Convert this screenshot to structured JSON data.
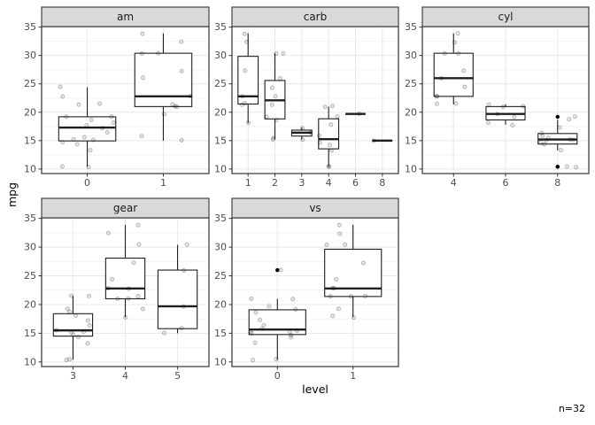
{
  "chart_data": {
    "type": "boxplot",
    "title": "",
    "xlabel": "level",
    "ylabel": "mpg",
    "caption": "n=32",
    "y_ticks": [
      10,
      15,
      20,
      25,
      30,
      35
    ],
    "y_minor_ticks": [
      12.5,
      17.5,
      22.5,
      27.5,
      32.5
    ],
    "y_domain": [
      9.2,
      35.1
    ],
    "legend": "none",
    "grid": "on",
    "colors": {
      "strip_fill": "#d9d9d9",
      "strip_border": "#333333",
      "panel_fill": "#ffffff",
      "panel_border": "#333333",
      "grid_major": "#e8e8e8",
      "grid_minor": "#f3f3f3",
      "box_stroke": "#1f1f1f",
      "box_fill": "#ffffff",
      "point_fill": "rgba(0,0,0,0.10)",
      "point_stroke": "rgba(0,0,0,0.26)",
      "outlier_fill": "#000000",
      "tick_mark": "#333333",
      "tick_text": "#4d4d4d",
      "strip_text": "#1a1a1a"
    },
    "facets": [
      {
        "title": "am",
        "row": 0,
        "col": 0,
        "levels": [
          "0",
          "1"
        ],
        "boxes": [
          {
            "level": "0",
            "whisker_low": 10.4,
            "q1": 14.95,
            "median": 17.3,
            "q3": 19.2,
            "whisker_high": 24.4,
            "outliers": []
          },
          {
            "level": "1",
            "whisker_low": 15.0,
            "q1": 21.0,
            "median": 22.8,
            "q3": 30.4,
            "whisker_high": 33.9,
            "outliers": []
          }
        ],
        "points": {
          "0": [
            21.4,
            18.7,
            18.1,
            14.3,
            24.4,
            22.8,
            19.2,
            17.8,
            16.4,
            17.3,
            15.2,
            10.4,
            10.4,
            14.7,
            21.5,
            15.5,
            15.2,
            13.3,
            19.2
          ],
          "1": [
            21.0,
            21.0,
            22.8,
            32.4,
            30.4,
            33.9,
            27.3,
            26.0,
            30.4,
            15.8,
            19.7,
            15.0,
            21.4
          ]
        }
      },
      {
        "title": "carb",
        "row": 0,
        "col": 1,
        "levels": [
          "1",
          "2",
          "3",
          "4",
          "6",
          "8"
        ],
        "boxes": [
          {
            "level": "1",
            "whisker_low": 18.1,
            "q1": 21.45,
            "median": 22.8,
            "q3": 29.85,
            "whisker_high": 33.9,
            "outliers": []
          },
          {
            "level": "2",
            "whisker_low": 15.2,
            "q1": 18.83,
            "median": 22.1,
            "q3": 25.6,
            "whisker_high": 30.4,
            "outliers": []
          },
          {
            "level": "3",
            "whisker_low": 15.2,
            "q1": 15.8,
            "median": 16.4,
            "q3": 16.85,
            "whisker_high": 17.3,
            "outliers": []
          },
          {
            "level": "4",
            "whisker_low": 10.4,
            "q1": 13.55,
            "median": 15.25,
            "q3": 18.85,
            "whisker_high": 21.0,
            "outliers": []
          },
          {
            "level": "6",
            "whisker_low": 19.7,
            "q1": 19.7,
            "median": 19.7,
            "q3": 19.7,
            "whisker_high": 19.7,
            "outliers": []
          },
          {
            "level": "8",
            "whisker_low": 15.0,
            "q1": 15.0,
            "median": 15.0,
            "q3": 15.0,
            "whisker_high": 15.0,
            "outliers": []
          }
        ],
        "points": {
          "1": [
            22.8,
            21.4,
            18.1,
            32.4,
            33.9,
            21.5,
            27.3
          ],
          "2": [
            18.7,
            24.4,
            22.8,
            30.4,
            15.5,
            15.2,
            19.2,
            26.0,
            30.4,
            21.4
          ],
          "3": [
            16.4,
            17.3,
            15.2
          ],
          "4": [
            21.0,
            21.0,
            14.3,
            19.2,
            17.8,
            10.4,
            10.4,
            14.7,
            13.3,
            15.8
          ],
          "6": [
            19.7
          ],
          "8": [
            15.0
          ]
        }
      },
      {
        "title": "cyl",
        "row": 0,
        "col": 2,
        "levels": [
          "4",
          "6",
          "8"
        ],
        "boxes": [
          {
            "level": "4",
            "whisker_low": 21.4,
            "q1": 22.8,
            "median": 26.0,
            "q3": 30.4,
            "whisker_high": 33.9,
            "outliers": []
          },
          {
            "level": "6",
            "whisker_low": 17.8,
            "q1": 18.65,
            "median": 19.7,
            "q3": 21.0,
            "whisker_high": 21.4,
            "outliers": []
          },
          {
            "level": "8",
            "whisker_low": 13.3,
            "q1": 14.4,
            "median": 15.2,
            "q3": 16.25,
            "whisker_high": 18.7,
            "outliers": [
              10.4,
              10.4,
              19.2
            ]
          }
        ],
        "points": {
          "4": [
            22.8,
            24.4,
            22.8,
            32.4,
            30.4,
            33.9,
            21.5,
            27.3,
            26.0,
            30.4,
            21.4
          ],
          "6": [
            21.0,
            21.0,
            21.4,
            18.1,
            19.2,
            17.8,
            19.7
          ],
          "8": [
            18.7,
            14.3,
            16.4,
            17.3,
            15.2,
            10.4,
            10.4,
            14.7,
            15.5,
            15.2,
            13.3,
            19.2,
            15.8,
            15.0
          ]
        }
      },
      {
        "title": "gear",
        "row": 1,
        "col": 0,
        "levels": [
          "3",
          "4",
          "5"
        ],
        "boxes": [
          {
            "level": "3",
            "whisker_low": 10.4,
            "q1": 14.5,
            "median": 15.5,
            "q3": 18.4,
            "whisker_high": 21.5,
            "outliers": []
          },
          {
            "level": "4",
            "whisker_low": 17.8,
            "q1": 21.0,
            "median": 22.8,
            "q3": 28.08,
            "whisker_high": 33.9,
            "outliers": []
          },
          {
            "level": "5",
            "whisker_low": 15.0,
            "q1": 15.8,
            "median": 19.7,
            "q3": 26.0,
            "whisker_high": 30.4,
            "outliers": []
          }
        ],
        "points": {
          "3": [
            21.4,
            18.7,
            18.1,
            14.3,
            16.4,
            17.3,
            15.2,
            10.4,
            10.4,
            14.7,
            21.5,
            15.5,
            15.2,
            13.3,
            19.2
          ],
          "4": [
            21.0,
            21.0,
            22.8,
            24.4,
            22.8,
            19.2,
            17.8,
            32.4,
            30.4,
            33.9,
            27.3,
            21.4
          ],
          "5": [
            26.0,
            30.4,
            15.8,
            19.7,
            15.0
          ]
        }
      },
      {
        "title": "vs",
        "row": 1,
        "col": 1,
        "levels": [
          "0",
          "1"
        ],
        "boxes": [
          {
            "level": "0",
            "whisker_low": 10.4,
            "q1": 14.78,
            "median": 15.65,
            "q3": 19.08,
            "whisker_high": 21.0,
            "outliers": [
              26.0
            ]
          },
          {
            "level": "1",
            "whisker_low": 17.8,
            "q1": 21.4,
            "median": 22.8,
            "q3": 29.63,
            "whisker_high": 33.9,
            "outliers": []
          }
        ],
        "points": {
          "0": [
            21.0,
            21.0,
            18.7,
            14.3,
            16.4,
            17.3,
            15.2,
            10.4,
            10.4,
            14.7,
            15.5,
            15.2,
            13.3,
            19.2,
            26.0,
            15.8,
            19.7,
            15.0
          ],
          "1": [
            22.8,
            24.4,
            22.8,
            32.4,
            30.4,
            33.9,
            21.5,
            27.3,
            30.4,
            21.4,
            18.1,
            17.8,
            19.2,
            21.4
          ]
        }
      }
    ]
  }
}
